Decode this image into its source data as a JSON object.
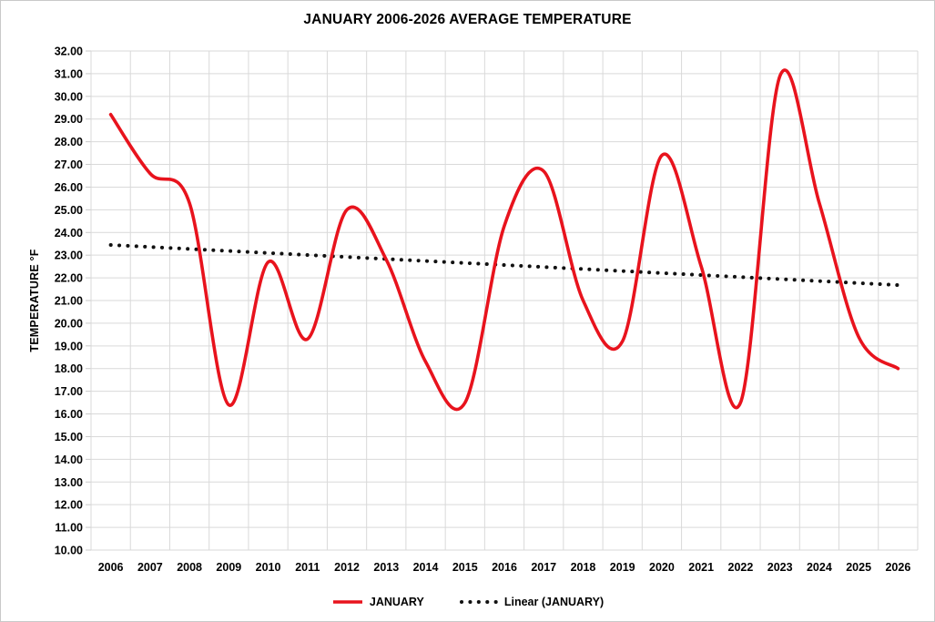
{
  "title": "JANUARY 2006-2026 AVERAGE TEMPERATURE",
  "colors": {
    "series_red": "#e8131d",
    "trendline_black": "#111111",
    "gridline_gray": "#d9d9d9",
    "axis_gray": "#c9c9c9",
    "text_black": "#000000",
    "background": "#ffffff"
  },
  "legend": {
    "items": [
      {
        "label": "JANUARY",
        "swatch": "solid-line",
        "color": "#e8131d"
      },
      {
        "label": "Linear (JANUARY)",
        "swatch": "dotted-line",
        "color": "#111111"
      }
    ]
  },
  "chart_data": {
    "type": "line",
    "title": "JANUARY 2006-2026 AVERAGE TEMPERATURE",
    "xlabel": "",
    "ylabel": "TEMPERATURE °F",
    "categories": [
      "2006",
      "2007",
      "2008",
      "2009",
      "2010",
      "2011",
      "2012",
      "2013",
      "2014",
      "2015",
      "2016",
      "2017",
      "2018",
      "2019",
      "2020",
      "2021",
      "2022",
      "2023",
      "2024",
      "2025",
      "2026"
    ],
    "series": [
      {
        "name": "JANUARY",
        "color": "#e8131d",
        "smooth": true,
        "values": [
          29.2,
          26.6,
          25.3,
          16.4,
          22.7,
          19.3,
          25.0,
          22.8,
          18.3,
          16.5,
          24.3,
          26.7,
          21.0,
          19.2,
          27.4,
          22.5,
          16.5,
          30.9,
          25.3,
          19.4,
          18.0
        ]
      }
    ],
    "trendline": {
      "name": "Linear (JANUARY)",
      "style": "dotted",
      "color": "#111111",
      "start_value": 23.45,
      "end_value": 21.68
    },
    "ylim": [
      10,
      32
    ],
    "ytick_step": 1,
    "ytick_decimals": 2,
    "grid": true,
    "legend_position": "bottom"
  }
}
